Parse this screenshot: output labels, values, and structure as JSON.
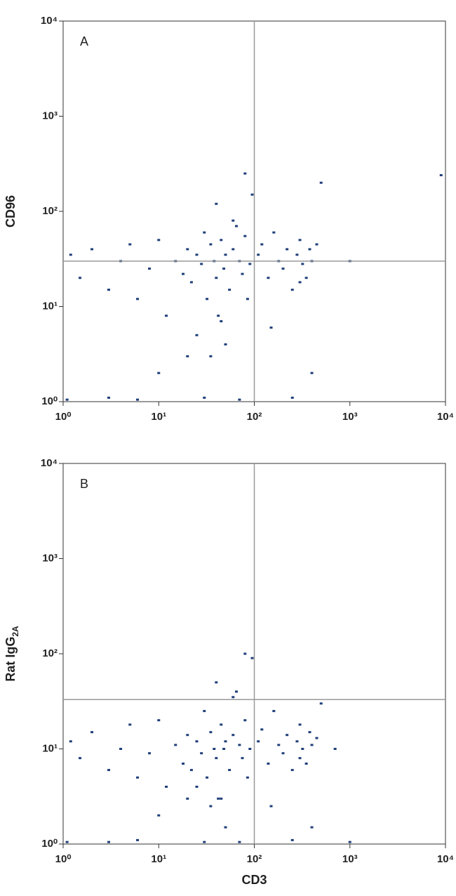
{
  "chart_data": [
    {
      "type": "scatter",
      "annotation": "A",
      "y_label": "CD96",
      "color": "#1f3f7a",
      "log_x": true,
      "log_y": true,
      "xlim": [
        1,
        10000
      ],
      "ylim": [
        1,
        10000
      ],
      "xticks": [
        {
          "value": 1,
          "label": "10⁰"
        },
        {
          "value": 10,
          "label": "10¹"
        },
        {
          "value": 100,
          "label": "10²"
        },
        {
          "value": 1000,
          "label": "10³"
        },
        {
          "value": 10000,
          "label": "10⁴"
        }
      ],
      "yticks": [
        {
          "value": 1,
          "label": "10⁰"
        },
        {
          "value": 10,
          "label": "10¹"
        },
        {
          "value": 100,
          "label": "10²"
        },
        {
          "value": 1000,
          "label": "10³"
        },
        {
          "value": 10000,
          "label": "10⁴"
        }
      ],
      "quadrant_x": 100,
      "quadrant_y": 30,
      "x": [
        1.2,
        1.5,
        2,
        3,
        4,
        5,
        6,
        8,
        10,
        12,
        15,
        18,
        20,
        22,
        25,
        28,
        30,
        32,
        35,
        38,
        40,
        42,
        45,
        48,
        50,
        55,
        60,
        65,
        70,
        75,
        80,
        85,
        90,
        95,
        110,
        120,
        140,
        160,
        180,
        200,
        220,
        250,
        280,
        300,
        320,
        350,
        380,
        400,
        450,
        500,
        3,
        6,
        10,
        20,
        30,
        50,
        70,
        150,
        250,
        400,
        40,
        60,
        80,
        25,
        35,
        45,
        300,
        1.1,
        9000,
        1000
      ],
      "values": [
        35,
        20,
        40,
        15,
        30,
        45,
        12,
        25,
        50,
        8,
        30,
        22,
        40,
        18,
        35,
        28,
        60,
        12,
        45,
        30,
        20,
        8,
        50,
        25,
        35,
        15,
        40,
        70,
        30,
        22,
        55,
        12,
        28,
        150,
        35,
        45,
        20,
        60,
        30,
        25,
        40,
        15,
        35,
        50,
        28,
        20,
        40,
        30,
        45,
        200,
        1.1,
        1.05,
        2,
        3,
        1.1,
        4,
        1.05,
        6,
        1.1,
        2,
        120,
        80,
        250,
        5,
        3,
        7,
        18,
        1.05,
        240,
        30
      ]
    },
    {
      "type": "scatter",
      "annotation": "B",
      "y_label": "Rat IgG",
      "y_label_sub": "2A",
      "x_label": "CD3",
      "color": "#1f3f7a",
      "log_x": true,
      "log_y": true,
      "xlim": [
        1,
        10000
      ],
      "ylim": [
        1,
        10000
      ],
      "xticks": [
        {
          "value": 1,
          "label": "10⁰"
        },
        {
          "value": 10,
          "label": "10¹"
        },
        {
          "value": 100,
          "label": "10²"
        },
        {
          "value": 1000,
          "label": "10³"
        },
        {
          "value": 10000,
          "label": "10⁴"
        }
      ],
      "yticks": [
        {
          "value": 1,
          "label": "10⁰"
        },
        {
          "value": 10,
          "label": "10¹"
        },
        {
          "value": 100,
          "label": "10²"
        },
        {
          "value": 1000,
          "label": "10³"
        },
        {
          "value": 10000,
          "label": "10⁴"
        }
      ],
      "quadrant_x": 100,
      "quadrant_y": 33,
      "x": [
        1.2,
        1.5,
        2,
        3,
        4,
        5,
        6,
        8,
        10,
        12,
        15,
        18,
        20,
        22,
        25,
        28,
        30,
        32,
        35,
        38,
        40,
        42,
        45,
        48,
        50,
        55,
        60,
        65,
        70,
        75,
        80,
        85,
        90,
        95,
        110,
        120,
        140,
        160,
        180,
        200,
        220,
        250,
        280,
        300,
        320,
        350,
        380,
        400,
        450,
        500,
        3,
        6,
        10,
        20,
        30,
        50,
        70,
        150,
        250,
        400,
        40,
        60,
        80,
        25,
        35,
        45,
        300,
        1.1,
        700,
        1000
      ],
      "values": [
        12,
        8,
        15,
        6,
        10,
        18,
        5,
        9,
        20,
        4,
        11,
        7,
        14,
        6,
        12,
        9,
        25,
        5,
        15,
        10,
        8,
        3,
        18,
        10,
        12,
        6,
        14,
        40,
        11,
        8,
        20,
        5,
        10,
        90,
        12,
        16,
        7,
        25,
        11,
        9,
        14,
        6,
        12,
        18,
        10,
        7,
        15,
        11,
        13,
        30,
        1.05,
        1.1,
        2,
        3,
        1.05,
        1.5,
        1.05,
        2.5,
        1.1,
        1.5,
        50,
        35,
        100,
        4,
        2.5,
        3,
        8,
        1.05,
        10,
        1.05
      ]
    }
  ]
}
